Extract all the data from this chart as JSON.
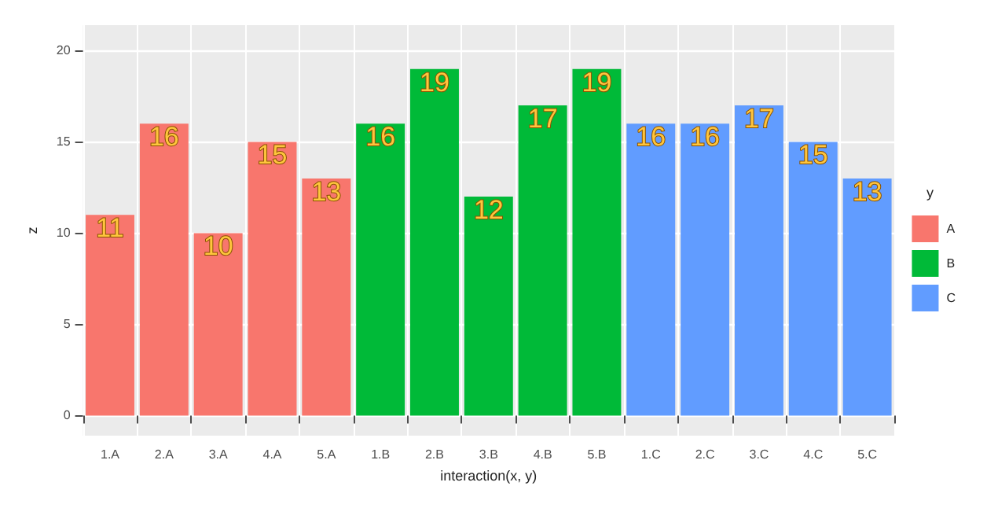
{
  "chart_data": {
    "type": "bar",
    "xlabel": "interaction(x, y)",
    "ylabel": "z",
    "legend_title": "y",
    "categories": [
      "1.A",
      "2.A",
      "3.A",
      "4.A",
      "5.A",
      "1.B",
      "2.B",
      "3.B",
      "4.B",
      "5.B",
      "1.C",
      "2.C",
      "3.C",
      "4.C",
      "5.C"
    ],
    "series": [
      {
        "name": "A",
        "color": "#f8766d",
        "values": [
          11,
          16,
          10,
          15,
          13,
          null,
          null,
          null,
          null,
          null,
          null,
          null,
          null,
          null,
          null
        ]
      },
      {
        "name": "B",
        "color": "#00ba38",
        "values": [
          null,
          null,
          null,
          null,
          null,
          16,
          19,
          12,
          17,
          19,
          null,
          null,
          null,
          null,
          null
        ]
      },
      {
        "name": "C",
        "color": "#619cff",
        "values": [
          null,
          null,
          null,
          null,
          null,
          null,
          null,
          null,
          null,
          null,
          16,
          16,
          17,
          15,
          13
        ]
      }
    ],
    "ylim": [
      -1.1,
      21.4
    ],
    "yticks": [
      0,
      5,
      10,
      15,
      20
    ],
    "grid": true,
    "legend": "right",
    "data_labels": true
  }
}
